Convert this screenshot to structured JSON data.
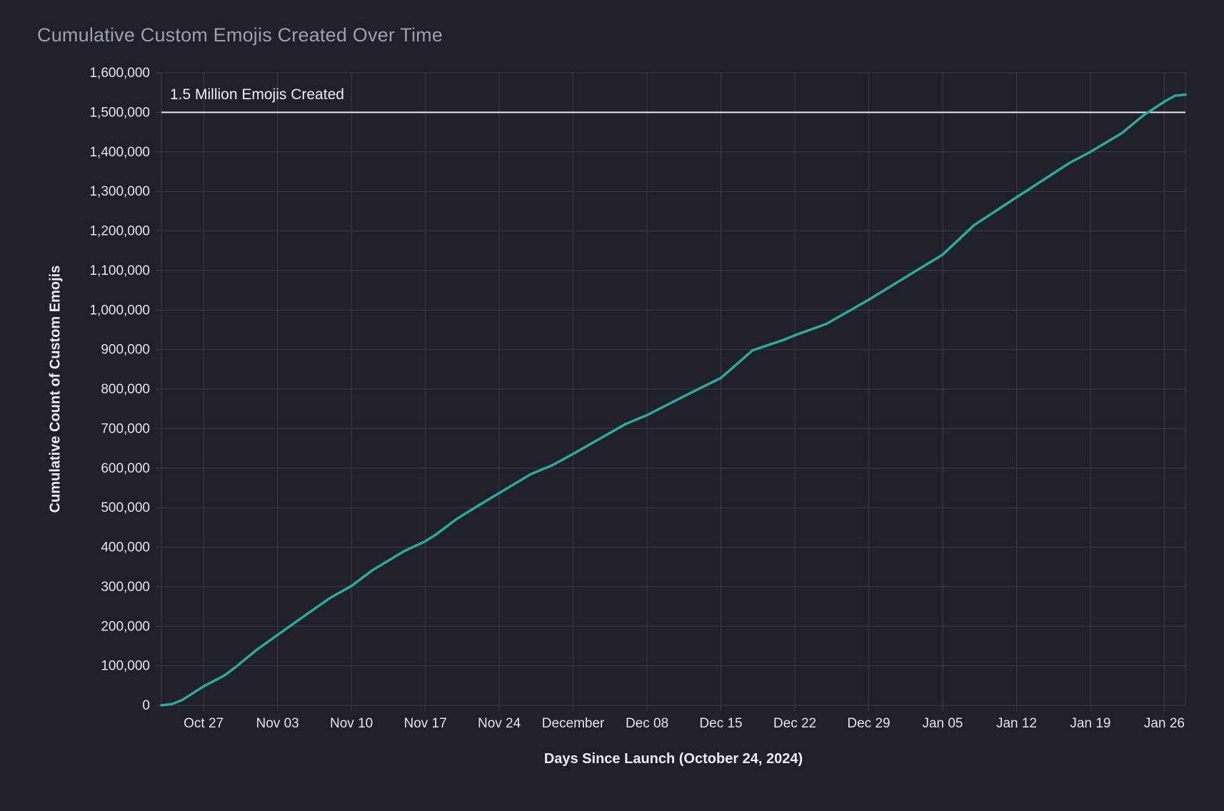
{
  "page": {
    "background_color": "#1f2029"
  },
  "chart": {
    "title": "Cumulative Custom Emojis Created Over Time",
    "x_axis_title": "Days Since Launch (October 24, 2024)",
    "y_axis_title": "Cumulative Count of Custom Emojis"
  },
  "chart_data": {
    "type": "line",
    "title": "Cumulative Custom Emojis Created Over Time",
    "xlabel": "Days Since Launch (October 24, 2024)",
    "ylabel": "Cumulative Count of Custom Emojis",
    "ylim": [
      0,
      1600000
    ],
    "x_range_days_since_launch": [
      -1,
      96
    ],
    "grid": true,
    "legend": "none",
    "reference_line": {
      "value": 1500000,
      "label": "1.5 Million Emojis Created"
    },
    "y_ticks": [
      {
        "value": 0,
        "label": "0"
      },
      {
        "value": 100000,
        "label": "100,000"
      },
      {
        "value": 200000,
        "label": "200,000"
      },
      {
        "value": 300000,
        "label": "300,000"
      },
      {
        "value": 400000,
        "label": "400,000"
      },
      {
        "value": 500000,
        "label": "500,000"
      },
      {
        "value": 600000,
        "label": "600,000"
      },
      {
        "value": 700000,
        "label": "700,000"
      },
      {
        "value": 800000,
        "label": "800,000"
      },
      {
        "value": 900000,
        "label": "900,000"
      },
      {
        "value": 1000000,
        "label": "1,000,000"
      },
      {
        "value": 1100000,
        "label": "1,100,000"
      },
      {
        "value": 1200000,
        "label": "1,200,000"
      },
      {
        "value": 1300000,
        "label": "1,300,000"
      },
      {
        "value": 1400000,
        "label": "1,400,000"
      },
      {
        "value": 1500000,
        "label": "1,500,000"
      },
      {
        "value": 1600000,
        "label": "1,600,000"
      }
    ],
    "x_ticks": [
      {
        "day": 3,
        "label": "Oct 27"
      },
      {
        "day": 10,
        "label": "Nov 03"
      },
      {
        "day": 17,
        "label": "Nov 10"
      },
      {
        "day": 24,
        "label": "Nov 17"
      },
      {
        "day": 31,
        "label": "Nov 24"
      },
      {
        "day": 38,
        "label": "December"
      },
      {
        "day": 45,
        "label": "Dec 08"
      },
      {
        "day": 52,
        "label": "Dec 15"
      },
      {
        "day": 59,
        "label": "Dec 22"
      },
      {
        "day": 66,
        "label": "Dec 29"
      },
      {
        "day": 73,
        "label": "Jan 05"
      },
      {
        "day": 80,
        "label": "Jan 12"
      },
      {
        "day": 87,
        "label": "Jan 19"
      },
      {
        "day": 94,
        "label": "Jan 26"
      }
    ],
    "series": [
      {
        "name": "cumulative-custom-emojis",
        "color": "#2ba99b",
        "points": [
          {
            "date": "Oct 23",
            "day": -1,
            "value": 0
          },
          {
            "date": "Oct 24",
            "day": 0,
            "value": 3000
          },
          {
            "date": "Oct 25",
            "day": 1,
            "value": 14000
          },
          {
            "date": "Oct 26",
            "day": 2,
            "value": 31000
          },
          {
            "date": "Oct 27",
            "day": 3,
            "value": 48000
          },
          {
            "date": "Oct 28",
            "day": 4,
            "value": 62000
          },
          {
            "date": "Oct 29",
            "day": 5,
            "value": 76000
          },
          {
            "date": "Oct 30",
            "day": 6,
            "value": 96000
          },
          {
            "date": "Nov 01",
            "day": 8,
            "value": 140000
          },
          {
            "date": "Nov 03",
            "day": 10,
            "value": 178000
          },
          {
            "date": "Nov 06",
            "day": 13,
            "value": 235000
          },
          {
            "date": "Nov 08",
            "day": 15,
            "value": 272000
          },
          {
            "date": "Nov 10",
            "day": 17,
            "value": 302000
          },
          {
            "date": "Nov 12",
            "day": 19,
            "value": 342000
          },
          {
            "date": "Nov 15",
            "day": 22,
            "value": 390000
          },
          {
            "date": "Nov 17",
            "day": 24,
            "value": 415000
          },
          {
            "date": "Nov 18",
            "day": 25,
            "value": 432000
          },
          {
            "date": "Nov 20",
            "day": 27,
            "value": 472000
          },
          {
            "date": "Nov 22",
            "day": 29,
            "value": 505000
          },
          {
            "date": "Nov 24",
            "day": 31,
            "value": 537000
          },
          {
            "date": "Nov 27",
            "day": 34,
            "value": 585000
          },
          {
            "date": "Nov 29",
            "day": 36,
            "value": 607000
          },
          {
            "date": "Dec 01",
            "day": 38,
            "value": 636000
          },
          {
            "date": "Dec 06",
            "day": 43,
            "value": 712000
          },
          {
            "date": "Dec 08",
            "day": 45,
            "value": 734000
          },
          {
            "date": "Dec 11",
            "day": 48,
            "value": 775000
          },
          {
            "date": "Dec 13",
            "day": 50,
            "value": 802000
          },
          {
            "date": "Dec 15",
            "day": 52,
            "value": 828000
          },
          {
            "date": "Dec 18",
            "day": 55,
            "value": 898000
          },
          {
            "date": "Dec 21",
            "day": 58,
            "value": 925000
          },
          {
            "date": "Dec 22",
            "day": 59,
            "value": 936000
          },
          {
            "date": "Dec 25",
            "day": 62,
            "value": 965000
          },
          {
            "date": "Dec 29",
            "day": 66,
            "value": 1026000
          },
          {
            "date": "Jan 01",
            "day": 69,
            "value": 1075000
          },
          {
            "date": "Jan 05",
            "day": 73,
            "value": 1140000
          },
          {
            "date": "Jan 08",
            "day": 76,
            "value": 1215000
          },
          {
            "date": "Jan 12",
            "day": 80,
            "value": 1285000
          },
          {
            "date": "Jan 15",
            "day": 83,
            "value": 1337000
          },
          {
            "date": "Jan 17",
            "day": 85,
            "value": 1372000
          },
          {
            "date": "Jan 19",
            "day": 87,
            "value": 1400000
          },
          {
            "date": "Jan 22",
            "day": 90,
            "value": 1448000
          },
          {
            "date": "Jan 24",
            "day": 92,
            "value": 1492000
          },
          {
            "date": "Jan 26",
            "day": 94,
            "value": 1527000
          },
          {
            "date": "Jan 27",
            "day": 95,
            "value": 1542000
          },
          {
            "date": "Jan 28",
            "day": 96,
            "value": 1545000
          }
        ]
      }
    ],
    "style": {
      "background": "#1f2029",
      "grid_color": "#3b3c49",
      "tick_label_color": "#e4e6ea",
      "title_color": "#9ba0ae",
      "axis_title_color": "#eceef2",
      "series_color": "#2ba99b",
      "reference_line_color": "#e7e8ee",
      "annotation_color": "#eef0f4"
    }
  }
}
